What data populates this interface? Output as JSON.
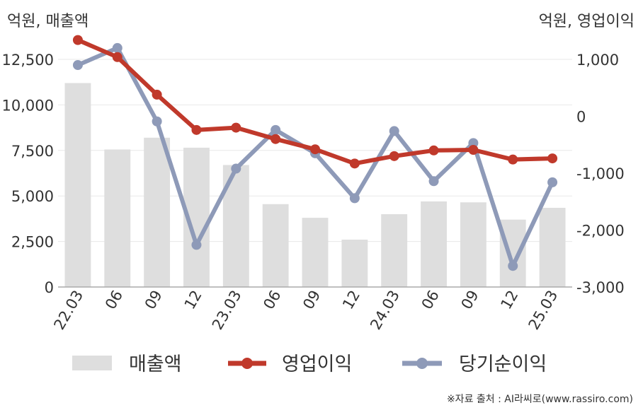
{
  "unit_left": "억원, 매출액",
  "unit_right": "억원, 영업이익",
  "source": "※자료 출처 : AI라씨로(www.rassiro.com)",
  "colors": {
    "revenue": "#dedede",
    "operating_profit": "#c0392b",
    "net_income": "#8e9ab8",
    "grid": "#e8e8e8",
    "axis": "#aaaaaa"
  },
  "chart_data": {
    "type": "bar",
    "categories": [
      "22.03",
      "06",
      "09",
      "12",
      "23.03",
      "06",
      "09",
      "12",
      "24.03",
      "06",
      "09",
      "12",
      "25.03"
    ],
    "series": [
      {
        "name": "매출액",
        "type": "bar",
        "axis": "left",
        "values": [
          11200,
          7550,
          8200,
          7650,
          6700,
          4550,
          3800,
          2600,
          4000,
          4700,
          4650,
          3700,
          4350
        ]
      },
      {
        "name": "영업이익",
        "type": "line",
        "axis": "right",
        "values": [
          1340,
          1040,
          380,
          -240,
          -200,
          -400,
          -580,
          -830,
          -700,
          -600,
          -590,
          -760,
          -740
        ]
      },
      {
        "name": "당기순이익",
        "type": "line",
        "axis": "right",
        "values": [
          900,
          1200,
          -90,
          -2260,
          -920,
          -240,
          -650,
          -1440,
          -260,
          -1140,
          -470,
          -2630,
          -1160
        ]
      }
    ],
    "left_axis": {
      "ticks": [
        "0",
        "2,500",
        "5,000",
        "7,500",
        "10,000",
        "12,500"
      ],
      "ylim": [
        0,
        12500
      ]
    },
    "right_axis": {
      "ticks": [
        "-3,000",
        "-2,000",
        "-1,000",
        "0",
        "1,000"
      ],
      "ylim": [
        -3000,
        1000
      ]
    },
    "grid": true,
    "legend": "bottom"
  }
}
